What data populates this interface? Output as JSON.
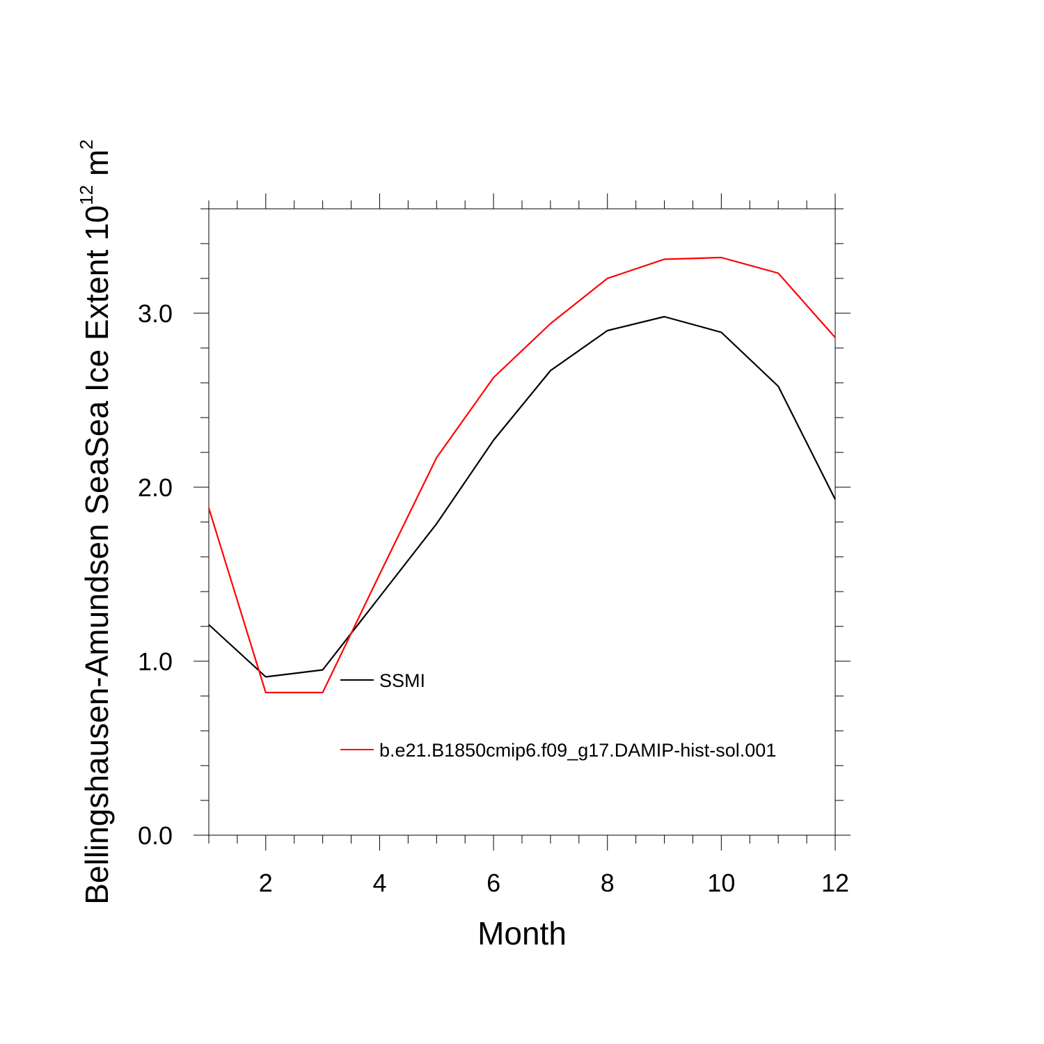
{
  "chart_data": {
    "type": "line",
    "title": "",
    "xlabel": "Month",
    "ylabel": "Bellingshausen-Amundsen SeaSea Ice Extent 10",
    "ylabel_exponent": "12",
    "ylabel_unit": " m",
    "ylabel_unit_exponent": "2",
    "xlim": [
      1,
      12
    ],
    "ylim": [
      0,
      3.6
    ],
    "x_ticks": [
      2,
      4,
      6,
      8,
      10,
      12
    ],
    "x_tick_labels": [
      "2",
      "4",
      "6",
      "8",
      "10",
      "12"
    ],
    "y_ticks": [
      0,
      1,
      2,
      3
    ],
    "y_tick_labels": [
      "0.0",
      "1.0",
      "2.0",
      "3.0"
    ],
    "x_minor_step": 0.5,
    "y_minor_step": 0.2,
    "x": [
      1,
      2,
      3,
      4,
      5,
      6,
      7,
      8,
      9,
      10,
      11,
      12
    ],
    "series": [
      {
        "name": "SSMI",
        "color": "#000000",
        "values": [
          1.21,
          0.91,
          0.95,
          1.37,
          1.79,
          2.27,
          2.67,
          2.9,
          2.98,
          2.89,
          2.58,
          1.93
        ]
      },
      {
        "name": "b.e21.B1850cmip6.f09_g17.DAMIP-hist-sol.001",
        "color": "#ff0000",
        "values": [
          1.88,
          0.82,
          0.82,
          1.5,
          2.17,
          2.63,
          2.94,
          3.2,
          3.31,
          3.32,
          3.23,
          2.86
        ]
      }
    ],
    "legend_position": "inside-bottom-center"
  }
}
